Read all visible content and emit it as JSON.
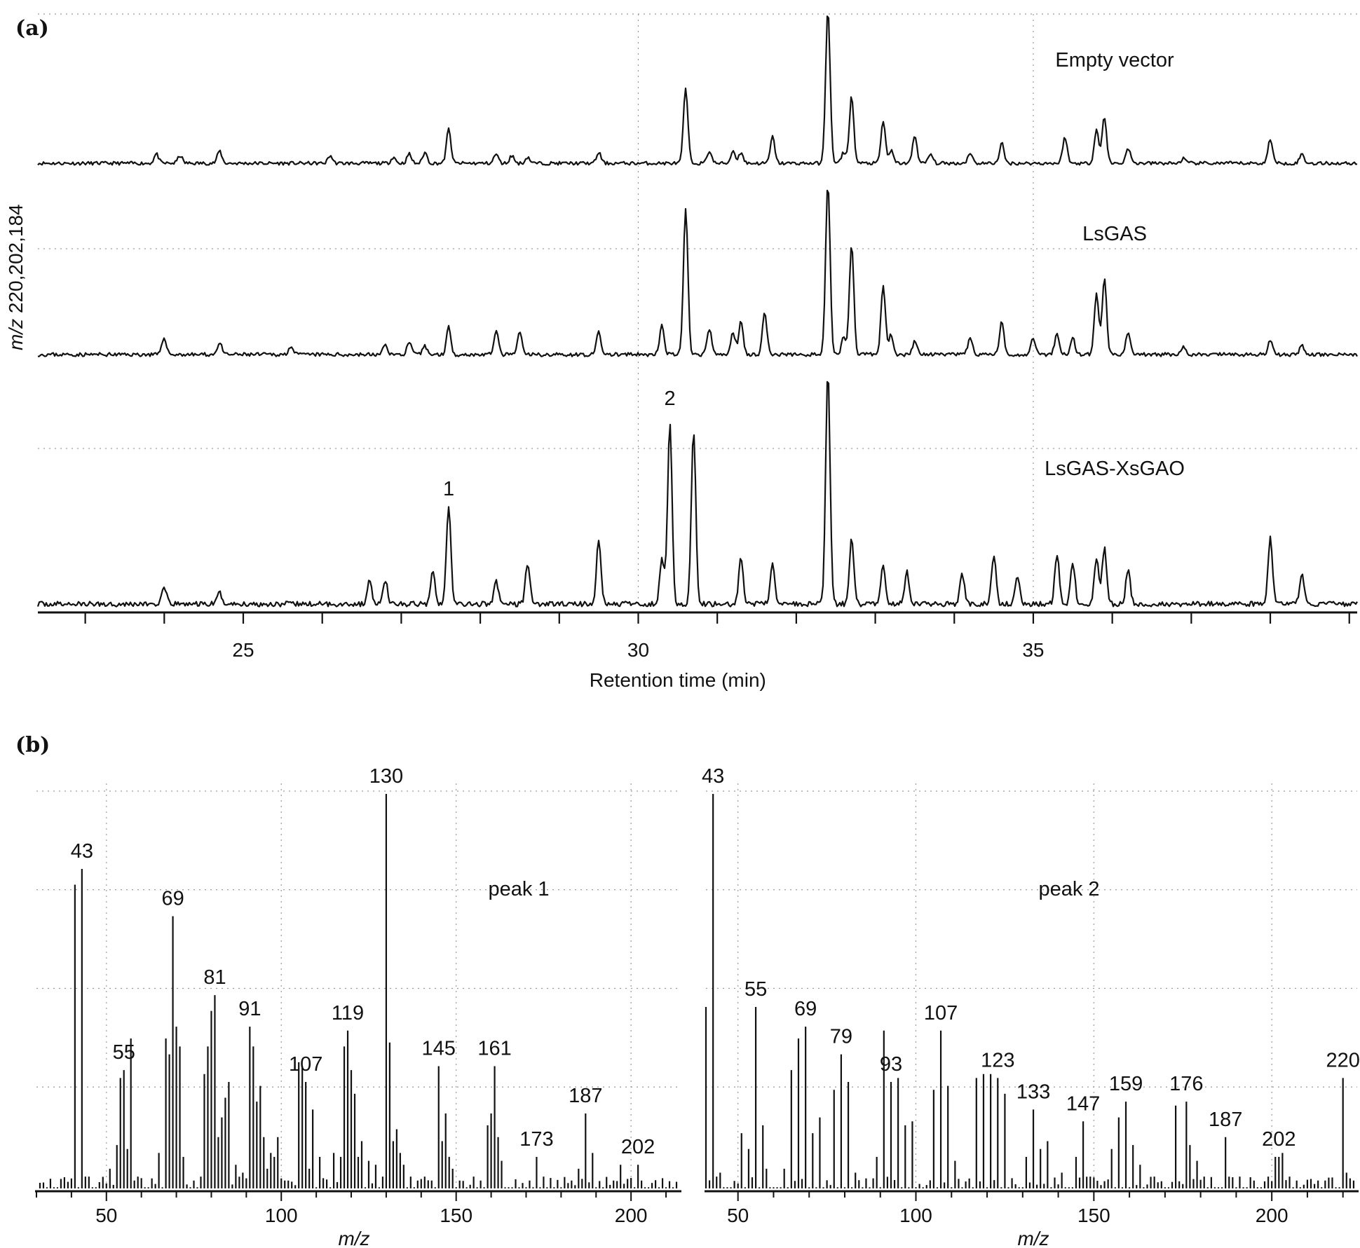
{
  "panel_a_label": "(a)",
  "panel_b_label": "(b)",
  "chart_data": [
    {
      "type": "line",
      "xlabel": "Retention time (min)",
      "ylabel_italic": "m/z",
      "ylabel_rest": " 220,202,184",
      "xlim": [
        22.4,
        39.1
      ],
      "x_ticks": [
        25,
        30,
        35
      ],
      "series": [
        {
          "name": "Empty vector",
          "peaks": [
            [
              23.9,
              0.06
            ],
            [
              24.2,
              0.05
            ],
            [
              24.7,
              0.08
            ],
            [
              26.1,
              0.05
            ],
            [
              26.9,
              0.04
            ],
            [
              27.1,
              0.06
            ],
            [
              27.3,
              0.07
            ],
            [
              27.6,
              0.22
            ],
            [
              28.2,
              0.06
            ],
            [
              28.4,
              0.05
            ],
            [
              28.6,
              0.04
            ],
            [
              29.5,
              0.07
            ],
            [
              30.6,
              0.48
            ],
            [
              30.9,
              0.08
            ],
            [
              31.2,
              0.08
            ],
            [
              31.3,
              0.07
            ],
            [
              31.7,
              0.17
            ],
            [
              32.4,
              1.0
            ],
            [
              32.6,
              0.07
            ],
            [
              32.7,
              0.43
            ],
            [
              33.1,
              0.27
            ],
            [
              33.2,
              0.08
            ],
            [
              33.5,
              0.18
            ],
            [
              33.7,
              0.06
            ],
            [
              34.2,
              0.07
            ],
            [
              34.6,
              0.13
            ],
            [
              35.4,
              0.17
            ],
            [
              35.8,
              0.22
            ],
            [
              35.9,
              0.3
            ],
            [
              36.2,
              0.1
            ],
            [
              36.9,
              0.03
            ],
            [
              38.0,
              0.16
            ],
            [
              38.4,
              0.06
            ]
          ]
        },
        {
          "name": "LsGAS",
          "peaks": [
            [
              24.0,
              0.1
            ],
            [
              24.7,
              0.07
            ],
            [
              25.6,
              0.05
            ],
            [
              26.8,
              0.06
            ],
            [
              27.1,
              0.07
            ],
            [
              27.3,
              0.05
            ],
            [
              27.6,
              0.16
            ],
            [
              28.2,
              0.14
            ],
            [
              28.5,
              0.13
            ],
            [
              29.5,
              0.13
            ],
            [
              30.3,
              0.17
            ],
            [
              30.6,
              0.85
            ],
            [
              30.9,
              0.15
            ],
            [
              31.2,
              0.13
            ],
            [
              31.3,
              0.2
            ],
            [
              31.6,
              0.25
            ],
            [
              32.4,
              1.0
            ],
            [
              32.6,
              0.1
            ],
            [
              32.7,
              0.65
            ],
            [
              33.1,
              0.4
            ],
            [
              33.2,
              0.12
            ],
            [
              33.5,
              0.08
            ],
            [
              34.2,
              0.1
            ],
            [
              34.6,
              0.19
            ],
            [
              35.0,
              0.1
            ],
            [
              35.3,
              0.13
            ],
            [
              35.5,
              0.1
            ],
            [
              35.8,
              0.35
            ],
            [
              35.9,
              0.45
            ],
            [
              36.2,
              0.13
            ],
            [
              36.9,
              0.05
            ],
            [
              38.0,
              0.08
            ],
            [
              38.4,
              0.05
            ]
          ]
        },
        {
          "name": "LsGAS-XsGAO",
          "peaks": [
            [
              24.0,
              0.07
            ],
            [
              24.7,
              0.05
            ],
            [
              26.6,
              0.1
            ],
            [
              26.8,
              0.1
            ],
            [
              27.4,
              0.15
            ],
            [
              27.6,
              0.42
            ],
            [
              28.2,
              0.1
            ],
            [
              28.6,
              0.18
            ],
            [
              29.5,
              0.28
            ],
            [
              30.3,
              0.2
            ],
            [
              30.4,
              0.78
            ],
            [
              30.7,
              0.75
            ],
            [
              31.3,
              0.2
            ],
            [
              31.7,
              0.18
            ],
            [
              32.4,
              1.0
            ],
            [
              32.7,
              0.28
            ],
            [
              33.1,
              0.17
            ],
            [
              33.4,
              0.14
            ],
            [
              34.1,
              0.13
            ],
            [
              34.5,
              0.21
            ],
            [
              34.8,
              0.12
            ],
            [
              35.3,
              0.22
            ],
            [
              35.5,
              0.18
            ],
            [
              35.8,
              0.2
            ],
            [
              35.9,
              0.24
            ],
            [
              36.2,
              0.15
            ],
            [
              38.0,
              0.29
            ],
            [
              38.4,
              0.13
            ]
          ]
        }
      ],
      "peak_annotations": [
        {
          "text": "1",
          "x": 27.6
        },
        {
          "text": "2",
          "x": 30.4
        }
      ]
    },
    {
      "type": "bar",
      "name": "peak 1",
      "xlabel": "m/z",
      "xlim": [
        30,
        214
      ],
      "x_ticks": [
        50,
        100,
        150,
        200
      ],
      "x": [
        41,
        43,
        44,
        45,
        51,
        53,
        54,
        55,
        56,
        57,
        58,
        59,
        65,
        67,
        68,
        69,
        70,
        71,
        72,
        75,
        77,
        78,
        79,
        80,
        81,
        82,
        83,
        84,
        85,
        86,
        87,
        89,
        91,
        92,
        93,
        94,
        95,
        96,
        97,
        98,
        99,
        101,
        105,
        106,
        107,
        108,
        109,
        111,
        115,
        117,
        118,
        119,
        120,
        121,
        122,
        123,
        125,
        127,
        129,
        130,
        131,
        132,
        133,
        134,
        135,
        137,
        139,
        141,
        143,
        145,
        146,
        147,
        148,
        149,
        151,
        155,
        157,
        159,
        160,
        161,
        162,
        163,
        171,
        173,
        175,
        183,
        185,
        187,
        189,
        195,
        197,
        202,
        203
      ],
      "values": [
        77,
        81,
        3,
        3,
        5,
        11,
        28,
        30,
        10,
        38,
        2,
        3,
        9,
        38,
        34,
        69,
        41,
        36,
        8,
        2,
        3,
        29,
        36,
        45,
        49,
        13,
        18,
        23,
        27,
        1,
        6,
        4,
        41,
        36,
        22,
        26,
        13,
        5,
        9,
        8,
        13,
        2,
        32,
        31,
        27,
        5,
        20,
        8,
        9,
        8,
        36,
        40,
        30,
        24,
        8,
        12,
        7,
        6,
        3,
        100,
        37,
        12,
        15,
        9,
        6,
        3,
        2,
        3,
        2,
        31,
        12,
        19,
        8,
        5,
        2,
        3,
        2,
        16,
        19,
        31,
        13,
        7,
        2,
        8,
        3,
        2,
        5,
        19,
        9,
        2,
        6,
        6,
        2
      ],
      "labeled": [
        43,
        55,
        69,
        81,
        91,
        107,
        119,
        130,
        145,
        161,
        173,
        187,
        202
      ]
    },
    {
      "type": "bar",
      "name": "peak 2",
      "xlabel": "m/z",
      "xlim": [
        41,
        224
      ],
      "x_ticks": [
        50,
        100,
        150,
        200
      ],
      "x": [
        41,
        43,
        44,
        45,
        51,
        53,
        55,
        57,
        58,
        63,
        65,
        67,
        69,
        71,
        73,
        77,
        79,
        81,
        83,
        89,
        91,
        93,
        95,
        97,
        99,
        105,
        107,
        109,
        111,
        117,
        119,
        121,
        123,
        125,
        131,
        133,
        135,
        137,
        141,
        145,
        147,
        149,
        155,
        157,
        159,
        161,
        163,
        167,
        173,
        176,
        177,
        179,
        181,
        187,
        191,
        195,
        199,
        201,
        202,
        203,
        205,
        207,
        213,
        215,
        220,
        221,
        223
      ],
      "values": [
        46,
        100,
        3,
        4,
        14,
        10,
        46,
        16,
        5,
        5,
        30,
        38,
        41,
        14,
        18,
        25,
        34,
        27,
        4,
        8,
        40,
        27,
        28,
        16,
        17,
        25,
        40,
        26,
        7,
        28,
        29,
        29,
        28,
        24,
        8,
        20,
        10,
        12,
        4,
        8,
        17,
        3,
        10,
        18,
        22,
        11,
        6,
        3,
        21,
        22,
        11,
        7,
        3,
        13,
        3,
        2,
        3,
        8,
        8,
        9,
        3,
        2,
        2,
        2,
        28,
        4,
        2
      ],
      "labeled": [
        43,
        55,
        69,
        79,
        93,
        107,
        123,
        133,
        147,
        159,
        176,
        187,
        202,
        220
      ]
    }
  ]
}
